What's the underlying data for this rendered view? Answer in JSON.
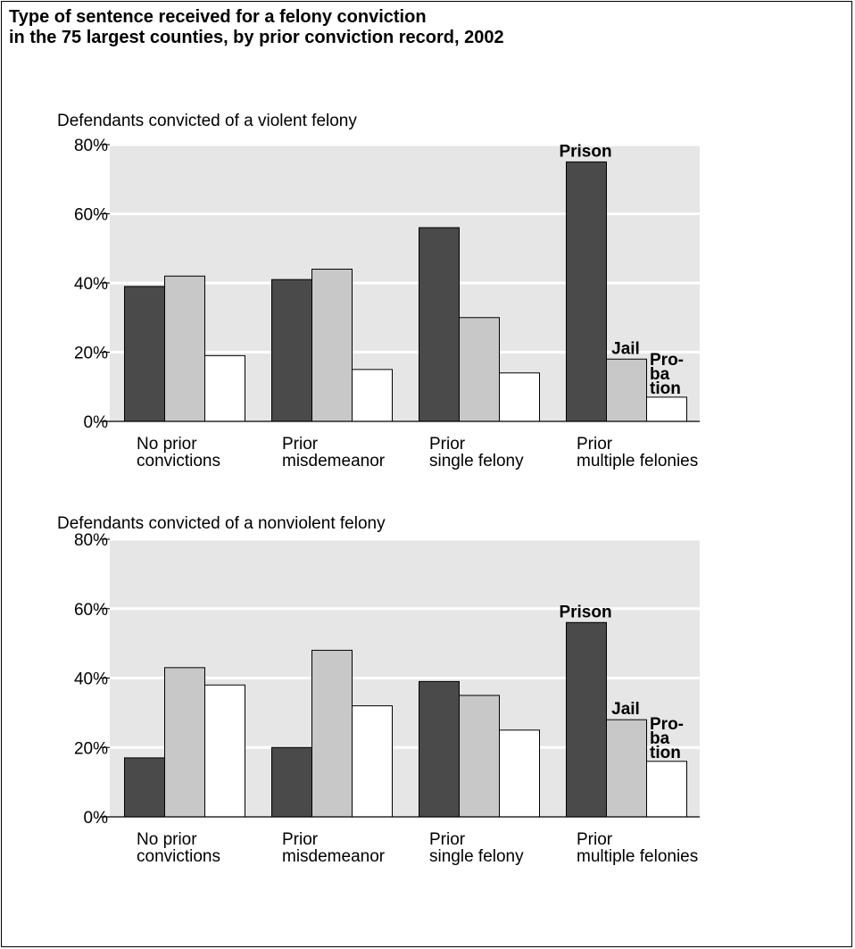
{
  "title_lines": [
    "Type of sentence received for a felony conviction",
    "in the 75 largest counties, by prior conviction record, 2002"
  ],
  "colors": {
    "prison": "#4a4a4a",
    "jail": "#c8c8c8",
    "probation": "#ffffff",
    "plot_bg": "#e6e6e6"
  },
  "chart_data": [
    {
      "type": "bar",
      "subtitle": "Defendants convicted of a violent felony",
      "categories": [
        [
          "No prior",
          "convictions"
        ],
        [
          "Prior",
          "misdemeanor"
        ],
        [
          "Prior",
          "single felony"
        ],
        [
          "Prior",
          "multiple felonies"
        ]
      ],
      "series": [
        {
          "name": "Prison",
          "values": [
            39,
            41,
            56,
            75
          ]
        },
        {
          "name": "Jail",
          "values": [
            42,
            44,
            30,
            18
          ]
        },
        {
          "name": "Pro-ba tion",
          "label_lines": [
            "Pro-",
            "ba",
            "tion"
          ],
          "values": [
            19,
            15,
            14,
            7
          ]
        }
      ],
      "yticks": [
        "0%",
        "20%",
        "40%",
        "60%",
        "80%"
      ],
      "ylim": [
        0,
        80
      ],
      "grid": true
    },
    {
      "type": "bar",
      "subtitle": "Defendants convicted of a nonviolent felony",
      "categories": [
        [
          "No prior",
          "convictions"
        ],
        [
          "Prior",
          "misdemeanor"
        ],
        [
          "Prior",
          "single felony"
        ],
        [
          "Prior",
          "multiple felonies"
        ]
      ],
      "series": [
        {
          "name": "Prison",
          "values": [
            17,
            20,
            39,
            56
          ]
        },
        {
          "name": "Jail",
          "values": [
            43,
            48,
            35,
            28
          ]
        },
        {
          "name": "Pro-ba tion",
          "label_lines": [
            "Pro-",
            "ba",
            "tion"
          ],
          "values": [
            38,
            32,
            25,
            16
          ]
        }
      ],
      "yticks": [
        "0%",
        "20%",
        "40%",
        "60%",
        "80%"
      ],
      "ylim": [
        0,
        80
      ],
      "grid": true
    }
  ]
}
